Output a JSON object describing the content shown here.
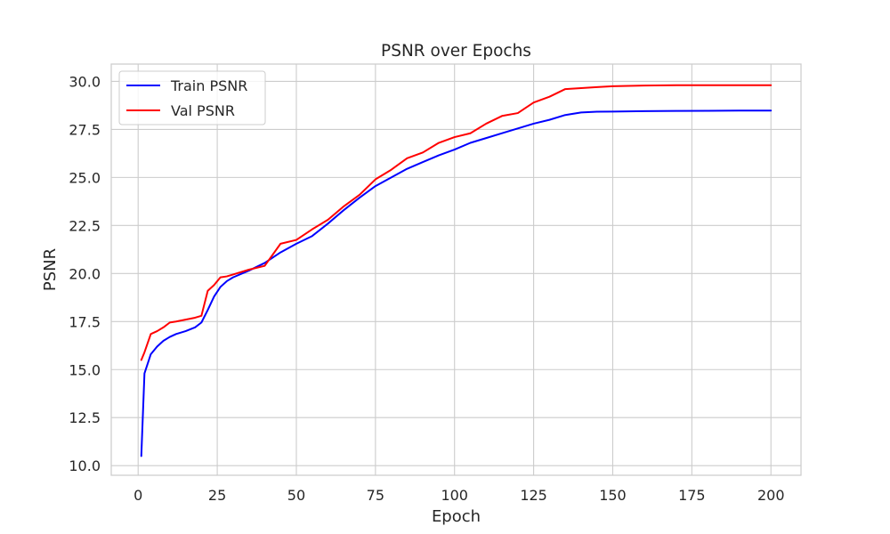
{
  "chart_data": {
    "type": "line",
    "title": "PSNR over Epochs",
    "xlabel": "Epoch",
    "ylabel": "PSNR",
    "xlim": [
      -8.5,
      209.5
    ],
    "ylim": [
      9.5,
      30.9
    ],
    "xticks": [
      0,
      25,
      50,
      75,
      100,
      125,
      150,
      175,
      200
    ],
    "xtick_labels": [
      "0",
      "25",
      "50",
      "75",
      "100",
      "125",
      "150",
      "175",
      "200"
    ],
    "yticks": [
      10.0,
      12.5,
      15.0,
      17.5,
      20.0,
      22.5,
      25.0,
      27.5,
      30.0
    ],
    "ytick_labels": [
      "10.0",
      "12.5",
      "15.0",
      "17.5",
      "20.0",
      "22.5",
      "25.0",
      "27.5",
      "30.0"
    ],
    "grid": true,
    "legend_position": "top-left",
    "x": [
      1,
      2,
      4,
      6,
      8,
      10,
      12,
      15,
      18,
      20,
      22,
      24,
      26,
      28,
      30,
      35,
      40,
      45,
      50,
      55,
      60,
      65,
      70,
      75,
      80,
      85,
      90,
      95,
      100,
      105,
      110,
      115,
      120,
      125,
      130,
      135,
      140,
      145,
      150,
      160,
      170,
      180,
      190,
      200
    ],
    "series": [
      {
        "name": "Train PSNR",
        "color": "#0000ff",
        "values": [
          10.5,
          14.8,
          15.8,
          16.2,
          16.5,
          16.7,
          16.85,
          17.0,
          17.2,
          17.45,
          18.1,
          18.8,
          19.3,
          19.6,
          19.8,
          20.15,
          20.55,
          21.1,
          21.55,
          21.95,
          22.6,
          23.3,
          23.95,
          24.55,
          25.0,
          25.45,
          25.8,
          26.15,
          26.45,
          26.8,
          27.05,
          27.3,
          27.55,
          27.8,
          28.0,
          28.25,
          28.38,
          28.42,
          28.43,
          28.45,
          28.46,
          28.47,
          28.48,
          28.48
        ]
      },
      {
        "name": "Val PSNR",
        "color": "#ff0000",
        "values": [
          15.5,
          15.9,
          16.85,
          17.0,
          17.2,
          17.45,
          17.5,
          17.6,
          17.7,
          17.8,
          19.1,
          19.4,
          19.8,
          19.85,
          19.95,
          20.2,
          20.4,
          21.55,
          21.75,
          22.3,
          22.8,
          23.5,
          24.1,
          24.9,
          25.4,
          26.0,
          26.3,
          26.8,
          27.1,
          27.3,
          27.8,
          28.2,
          28.35,
          28.9,
          29.2,
          29.6,
          29.65,
          29.7,
          29.75,
          29.78,
          29.8,
          29.8,
          29.8,
          29.8
        ]
      }
    ]
  }
}
